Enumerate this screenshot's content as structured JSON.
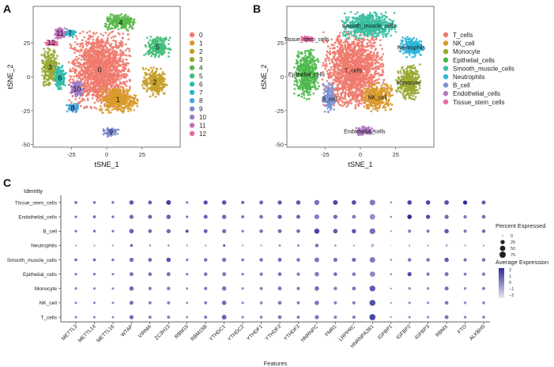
{
  "chart_data": [
    {
      "panel": "A",
      "type": "scatter",
      "title": "",
      "xlabel": "tSNE_1",
      "ylabel": "tSNE_2",
      "xlim": [
        -52,
        52
      ],
      "ylim": [
        -52,
        52
      ],
      "xticks": [
        -25,
        0,
        25
      ],
      "yticks": [
        -50,
        -25,
        0,
        25
      ],
      "legend_position": "right",
      "grid": false,
      "clusters": [
        {
          "label": "0",
          "color": "#F07A6E",
          "center": [
            -5,
            5
          ],
          "spread": [
            20,
            26
          ]
        },
        {
          "label": "1",
          "color": "#D89A2A",
          "center": [
            8,
            -17
          ],
          "spread": [
            13,
            9
          ]
        },
        {
          "label": "2",
          "color": "#C7A02C",
          "center": [
            34,
            -4
          ],
          "spread": [
            8,
            10
          ]
        },
        {
          "label": "3",
          "color": "#99A832",
          "center": [
            -40,
            7
          ],
          "spread": [
            6,
            13
          ]
        },
        {
          "label": "4",
          "color": "#5BB84A",
          "center": [
            10,
            40
          ],
          "spread": [
            11,
            6
          ]
        },
        {
          "label": "5",
          "color": "#42BD7A",
          "center": [
            36,
            22
          ],
          "spread": [
            9,
            7
          ]
        },
        {
          "label": "6",
          "color": "#2FBBA9",
          "center": [
            -33,
            -1
          ],
          "spread": [
            4,
            9
          ]
        },
        {
          "label": "7",
          "color": "#2EB5C9",
          "center": [
            -26,
            32
          ],
          "spread": [
            4,
            3
          ]
        },
        {
          "label": "8",
          "color": "#46A3DB",
          "center": [
            -24,
            -23
          ],
          "spread": [
            4,
            3
          ]
        },
        {
          "label": "9",
          "color": "#7B8AD0",
          "center": [
            3,
            -41
          ],
          "spread": [
            5,
            3
          ]
        },
        {
          "label": "10",
          "color": "#9E79C6",
          "center": [
            -21,
            -9
          ],
          "spread": [
            5,
            5
          ]
        },
        {
          "label": "11",
          "color": "#C46FBE",
          "center": [
            -33,
            32
          ],
          "spread": [
            4,
            4
          ]
        },
        {
          "label": "12",
          "color": "#E86AA6",
          "center": [
            -39,
            25
          ],
          "spread": [
            4,
            2
          ]
        }
      ]
    },
    {
      "panel": "B",
      "type": "scatter",
      "title": "",
      "xlabel": "tSNE_1",
      "ylabel": "tSNE_2",
      "xlim": [
        -52,
        52
      ],
      "ylim": [
        -52,
        52
      ],
      "xticks": [
        -25,
        0,
        25
      ],
      "yticks": [
        -50,
        -25,
        0,
        25
      ],
      "legend_position": "right",
      "grid": false,
      "clusters": [
        {
          "label": "T_cells",
          "color": "#F07A6E",
          "center": [
            -5,
            5
          ],
          "spread": [
            20,
            26
          ]
        },
        {
          "label": "NK_cell",
          "color": "#D89A2A",
          "center": [
            12,
            -15
          ],
          "spread": [
            10,
            10
          ]
        },
        {
          "label": "Monocyte",
          "color": "#99A832",
          "center": [
            34,
            -4
          ],
          "spread": [
            8,
            12
          ]
        },
        {
          "label": "Epithelial_cells",
          "color": "#4CB84A",
          "center": [
            -38,
            2
          ],
          "spread": [
            8,
            17
          ]
        },
        {
          "label": "Smooth_muscle_cells",
          "color": "#38BFA2",
          "center": [
            6,
            38
          ],
          "spread": [
            18,
            9
          ]
        },
        {
          "label": "Neutrophils",
          "color": "#2EB6DA",
          "center": [
            36,
            22
          ],
          "spread": [
            8,
            7
          ]
        },
        {
          "label": "B_cell",
          "color": "#7C92D4",
          "center": [
            -22,
            -16
          ],
          "spread": [
            4,
            10
          ]
        },
        {
          "label": "Endothelial_cells",
          "color": "#B277C5",
          "center": [
            3,
            -40
          ],
          "spread": [
            6,
            3
          ]
        },
        {
          "label": "Tissue_stem_cells",
          "color": "#E86AA6",
          "center": [
            -38,
            28
          ],
          "spread": [
            5,
            2
          ]
        }
      ]
    },
    {
      "panel": "C",
      "type": "dot",
      "title": "",
      "xlabel": "Features",
      "ylabel": "Identity",
      "features": [
        "METTL3",
        "METTL14",
        "METTL16",
        "WTAP",
        "VIRMA",
        "ZC3H13",
        "RBM15",
        "RBM15B",
        "YTHDC1",
        "YTHDC2",
        "YTHDF1",
        "YTHDF2",
        "YTHDF3",
        "HNRNPC",
        "FMR1",
        "LRPPRC",
        "HNRNPA2B1",
        "IGFBP1",
        "IGFBP2",
        "IGFBP3",
        "RBMX",
        "FTO",
        "ALKBH5"
      ],
      "identities": [
        "Tissue_stem_cells",
        "Endothelial_cells",
        "B_cell",
        "Neutrophils",
        "Smooth_muscle_cells",
        "Epithelial_cells",
        "Monocyte",
        "NK_cell",
        "T_cells"
      ],
      "percent_expressed": [
        [
          8,
          6,
          6,
          28,
          20,
          35,
          5,
          25,
          30,
          12,
          20,
          25,
          28,
          42,
          35,
          32,
          55,
          2,
          28,
          28,
          32,
          25,
          20
        ],
        [
          5,
          8,
          6,
          25,
          22,
          28,
          5,
          22,
          28,
          10,
          18,
          25,
          22,
          38,
          25,
          18,
          52,
          2,
          30,
          25,
          25,
          12,
          18
        ],
        [
          5,
          6,
          5,
          30,
          18,
          25,
          10,
          20,
          25,
          6,
          15,
          20,
          18,
          45,
          30,
          28,
          60,
          1,
          12,
          12,
          28,
          10,
          15
        ],
        [
          1,
          1,
          1,
          6,
          2,
          2,
          1,
          1,
          4,
          1,
          1,
          3,
          2,
          15,
          2,
          1,
          12,
          0,
          1,
          1,
          2,
          1,
          1
        ],
        [
          8,
          8,
          6,
          25,
          18,
          28,
          5,
          15,
          25,
          8,
          15,
          20,
          15,
          35,
          22,
          22,
          55,
          2,
          15,
          15,
          28,
          12,
          15
        ],
        [
          5,
          5,
          4,
          22,
          15,
          20,
          5,
          15,
          22,
          5,
          12,
          18,
          12,
          30,
          18,
          15,
          48,
          2,
          25,
          12,
          20,
          8,
          12
        ],
        [
          5,
          4,
          4,
          28,
          12,
          15,
          3,
          12,
          28,
          5,
          10,
          20,
          12,
          30,
          15,
          18,
          60,
          1,
          6,
          6,
          22,
          6,
          10
        ],
        [
          4,
          4,
          3,
          22,
          10,
          12,
          3,
          10,
          30,
          5,
          8,
          18,
          10,
          28,
          12,
          12,
          65,
          1,
          5,
          5,
          18,
          6,
          8
        ],
        [
          4,
          4,
          3,
          25,
          10,
          12,
          3,
          12,
          35,
          5,
          8,
          18,
          10,
          25,
          12,
          12,
          70,
          1,
          5,
          5,
          20,
          6,
          8
        ]
      ],
      "average_expression": [
        [
          0.5,
          0.5,
          0.3,
          1.0,
          0.8,
          1.5,
          0.2,
          1.2,
          1.0,
          0.6,
          0.7,
          1.0,
          1.0,
          0.5,
          1.4,
          1.2,
          0.3,
          -0.2,
          1.5,
          1.5,
          1.2,
          2.0,
          1.0
        ],
        [
          0.3,
          0.6,
          0.4,
          0.6,
          0.8,
          0.8,
          0.3,
          0.8,
          0.6,
          0.4,
          0.5,
          0.8,
          0.7,
          0.2,
          0.6,
          0.4,
          -0.1,
          -0.2,
          2.0,
          1.3,
          0.6,
          0.4,
          0.6
        ],
        [
          0.3,
          0.4,
          0.3,
          0.8,
          0.7,
          0.7,
          1.2,
          0.8,
          0.5,
          0.2,
          0.5,
          0.6,
          0.6,
          1.4,
          1.0,
          1.0,
          0.5,
          -0.3,
          0.2,
          0.2,
          1.0,
          0.4,
          0.6
        ],
        [
          -0.3,
          -0.3,
          -0.3,
          1.0,
          -0.3,
          -0.3,
          -0.3,
          -0.3,
          1.2,
          -0.3,
          -0.3,
          -0.2,
          0.5,
          0.4,
          -0.3,
          -0.3,
          -1.0,
          -0.3,
          -0.3,
          -0.3,
          -0.3,
          -0.3,
          -0.3
        ],
        [
          0.5,
          0.6,
          0.3,
          0.6,
          0.7,
          1.2,
          0.3,
          0.5,
          0.5,
          0.3,
          0.5,
          0.6,
          0.5,
          0.4,
          0.6,
          0.7,
          0.3,
          -0.2,
          0.4,
          0.4,
          1.0,
          0.5,
          0.5
        ],
        [
          0.3,
          0.4,
          0.2,
          0.4,
          0.6,
          0.5,
          0.2,
          0.5,
          0.3,
          0.2,
          0.4,
          0.5,
          0.4,
          0.2,
          0.5,
          0.4,
          0.0,
          -0.2,
          1.3,
          0.4,
          0.5,
          0.3,
          0.4
        ],
        [
          0.2,
          0.2,
          0.1,
          0.6,
          0.3,
          0.2,
          0.0,
          0.3,
          0.4,
          0.0,
          0.2,
          0.4,
          0.3,
          0.5,
          0.2,
          0.5,
          1.0,
          -0.3,
          -0.2,
          -0.2,
          0.5,
          0.0,
          0.2
        ],
        [
          0.1,
          0.1,
          0.1,
          0.5,
          0.2,
          0.1,
          0.0,
          0.2,
          0.6,
          0.0,
          0.1,
          0.4,
          0.2,
          0.4,
          0.1,
          0.2,
          1.2,
          -0.3,
          -0.2,
          -0.2,
          0.4,
          0.0,
          0.1
        ],
        [
          0.1,
          0.1,
          0.1,
          0.6,
          0.2,
          0.1,
          0.0,
          0.2,
          0.8,
          0.0,
          0.1,
          0.4,
          0.2,
          0.3,
          0.1,
          0.2,
          1.4,
          -0.3,
          -0.2,
          -0.2,
          0.4,
          0.0,
          0.1
        ]
      ],
      "legend": {
        "percent_title": "Percent Expressed",
        "percent_ticks": [
          "0",
          "25",
          "50",
          "75"
        ],
        "percent_values": [
          0,
          25,
          50,
          75
        ],
        "avg_title": "Average Expression",
        "avg_ticks": [
          "2",
          "1",
          "0",
          "−1",
          "−2"
        ],
        "avg_range": [
          -2,
          2
        ]
      }
    }
  ],
  "panels": {
    "a": {
      "letter": "A"
    },
    "b": {
      "letter": "B"
    },
    "c": {
      "letter": "C"
    }
  },
  "colors": {
    "low": "#EAE7F5",
    "high": "#2C2C96"
  }
}
